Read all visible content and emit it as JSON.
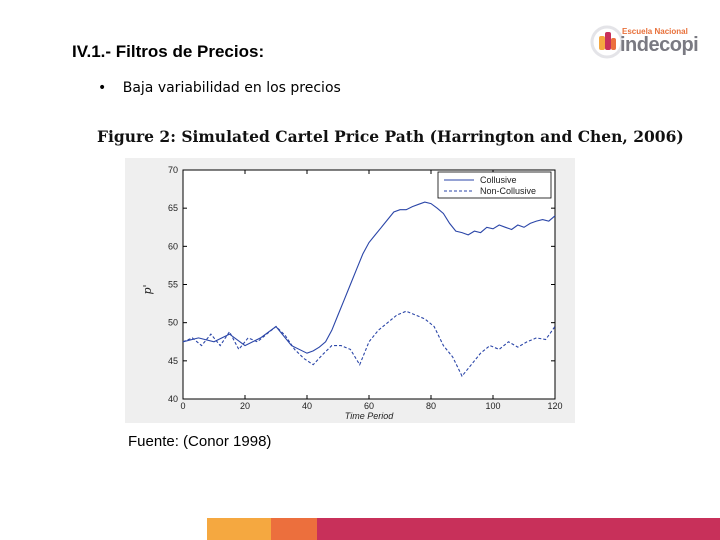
{
  "slide": {
    "title": "IV.1.- Filtros de Precios:",
    "bullet": "Baja variabilidad en los precios",
    "source": "Fuente: (Conor 1998)"
  },
  "logo": {
    "top_text": "Escuela Nacional",
    "main_text": "indecopi",
    "colors": {
      "orange": "#e8703a",
      "red": "#c8305a",
      "yellow": "#f5a840",
      "gray": "#7a7a82"
    }
  },
  "chart_data": {
    "type": "line",
    "title": "Figure 2: Simulated Cartel Price Path (Harrington and Chen, 2006)",
    "xlabel": "Time Period",
    "ylabel": "p'",
    "xlim": [
      0,
      120
    ],
    "ylim": [
      40,
      70
    ],
    "xticks": [
      0,
      20,
      40,
      60,
      80,
      100,
      120
    ],
    "yticks": [
      40,
      45,
      50,
      55,
      60,
      65,
      70
    ],
    "legend_position": "top-right",
    "series": [
      {
        "name": "Collusive",
        "style": "solid",
        "color": "#2b46a8",
        "x": [
          0,
          5,
          10,
          15,
          20,
          25,
          30,
          35,
          40,
          42,
          44,
          46,
          48,
          50,
          52,
          54,
          56,
          58,
          60,
          62,
          64,
          66,
          68,
          70,
          72,
          74,
          76,
          78,
          80,
          82,
          84,
          86,
          88,
          90,
          92,
          94,
          96,
          98,
          100,
          102,
          104,
          106,
          108,
          110,
          112,
          114,
          116,
          118,
          120
        ],
        "values": [
          47.5,
          48,
          47.5,
          48.5,
          47,
          48,
          49.5,
          47,
          46,
          46.3,
          46.8,
          47.5,
          49,
          51,
          53,
          55,
          57,
          59,
          60.5,
          61.5,
          62.5,
          63.5,
          64.5,
          64.8,
          64.8,
          65.2,
          65.5,
          65.8,
          65.6,
          65,
          64.3,
          63,
          62,
          61.8,
          61.5,
          62,
          61.8,
          62.5,
          62.3,
          62.8,
          62.5,
          62.2,
          62.8,
          62.5,
          63,
          63.3,
          63.5,
          63.3,
          64
        ]
      },
      {
        "name": "Non-Collusive",
        "style": "dashed",
        "color": "#2b46a8",
        "x": [
          0,
          3,
          6,
          9,
          12,
          15,
          18,
          21,
          24,
          27,
          30,
          33,
          36,
          39,
          42,
          45,
          48,
          51,
          54,
          57,
          60,
          63,
          66,
          69,
          72,
          75,
          78,
          81,
          84,
          87,
          90,
          93,
          96,
          99,
          102,
          105,
          108,
          111,
          114,
          117,
          120
        ],
        "values": [
          47.5,
          48,
          47,
          48.5,
          47,
          48.8,
          46.5,
          48,
          47.5,
          48.5,
          49.5,
          48.3,
          46.5,
          45.3,
          44.5,
          45.8,
          47,
          47,
          46.5,
          44.5,
          47.5,
          49,
          50,
          51,
          51.5,
          51,
          50.5,
          49.5,
          47,
          45.5,
          43,
          44.5,
          46,
          47,
          46.5,
          47.5,
          46.8,
          47.5,
          48,
          47.8,
          49.5
        ]
      }
    ]
  }
}
